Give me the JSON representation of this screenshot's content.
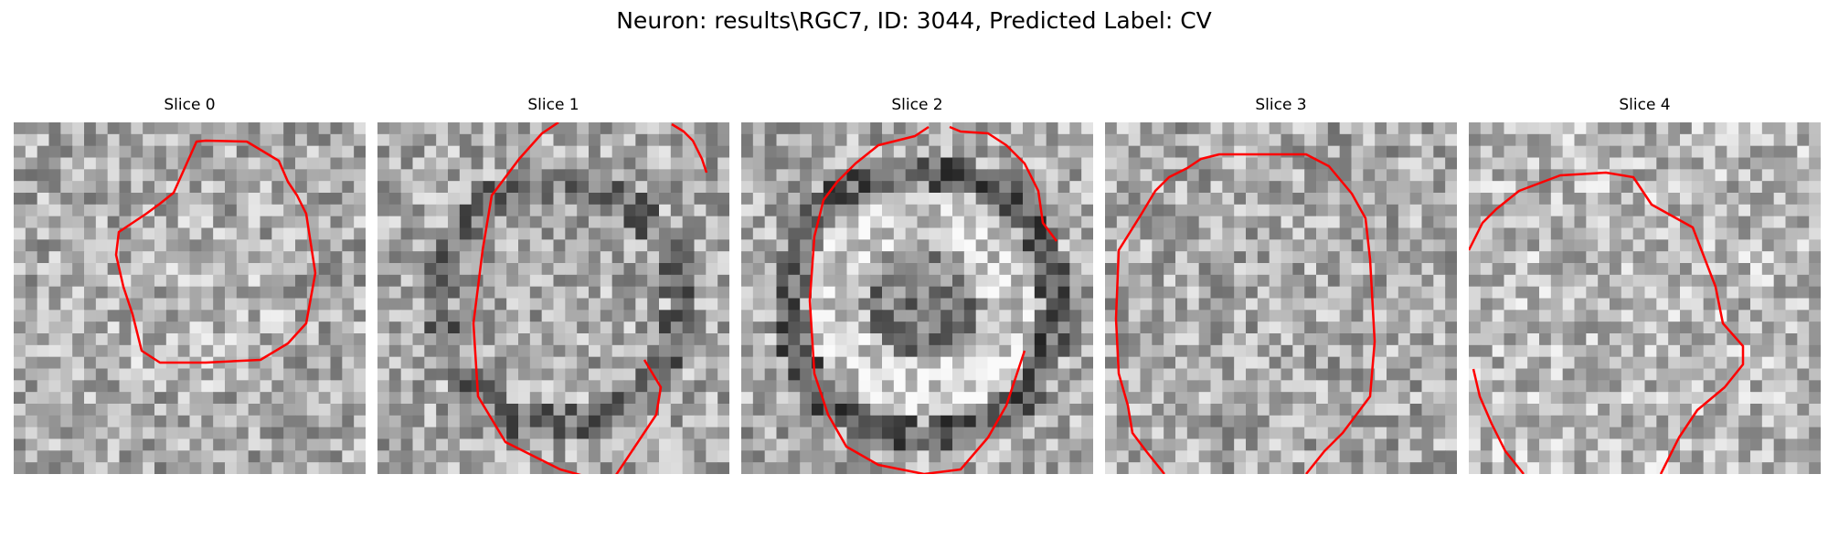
{
  "figure": {
    "title": "Neuron: results\\RGC7, ID: 3044, Predicted Label: CV"
  },
  "colors": {
    "contour": "#ff0000",
    "background": "#ffffff"
  },
  "slices": [
    {
      "title": "Slice 0",
      "seed": 11,
      "pattern": "blob"
    },
    {
      "title": "Slice 1",
      "seed": 23,
      "pattern": "ring"
    },
    {
      "title": "Slice 2",
      "seed": 37,
      "pattern": "ring-strong"
    },
    {
      "title": "Slice 3",
      "seed": 41,
      "pattern": "noise"
    },
    {
      "title": "Slice 4",
      "seed": 59,
      "pattern": "noise-light"
    }
  ]
}
